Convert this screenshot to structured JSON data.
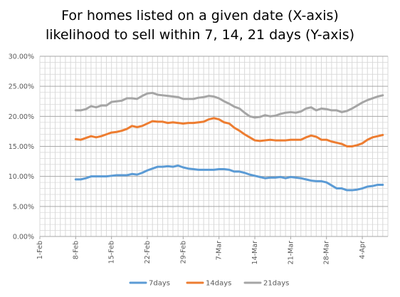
{
  "chart_data": {
    "type": "line",
    "title_lines": [
      "For homes listed on a given date (X-axis)",
      "likelihood to sell within 7, 14, 21 days  (Y-axis)"
    ],
    "xlabel": "",
    "ylabel": "",
    "ylim": [
      0,
      0.3
    ],
    "y_ticks": [
      "0.00%",
      "5.00%",
      "10.00%",
      "15.00%",
      "20.00%",
      "25.00%",
      "30.00%"
    ],
    "x_ticks": [
      "1-Feb",
      "8-Feb",
      "15-Feb",
      "22-Feb",
      "29-Feb",
      "7-Mar",
      "14-Mar",
      "21-Mar",
      "28-Mar",
      "4-Apr"
    ],
    "x_start_label": "1-Feb",
    "x_range_days": [
      0,
      68
    ],
    "grid": "horizontal and vertical",
    "legend_position": "bottom",
    "series": [
      {
        "name": "7days",
        "color": "#5b9bd5",
        "x": [
          7,
          8,
          9,
          10,
          11,
          12,
          13,
          14,
          15,
          16,
          17,
          18,
          19,
          20,
          21,
          22,
          23,
          24,
          25,
          26,
          27,
          28,
          29,
          30,
          31,
          32,
          33,
          34,
          35,
          36,
          37,
          38,
          39,
          40,
          41,
          42,
          43,
          44,
          45,
          46,
          47,
          48,
          49,
          50,
          51,
          52,
          53,
          54,
          55,
          56,
          57,
          58,
          59,
          60,
          61,
          62,
          63,
          64,
          65,
          66,
          67
        ],
        "values": [
          0.095,
          0.095,
          0.097,
          0.1,
          0.1,
          0.1,
          0.1,
          0.101,
          0.102,
          0.102,
          0.102,
          0.104,
          0.103,
          0.106,
          0.11,
          0.113,
          0.116,
          0.116,
          0.117,
          0.116,
          0.118,
          0.115,
          0.113,
          0.112,
          0.111,
          0.111,
          0.111,
          0.111,
          0.112,
          0.112,
          0.111,
          0.108,
          0.108,
          0.106,
          0.103,
          0.101,
          0.099,
          0.097,
          0.098,
          0.098,
          0.099,
          0.097,
          0.099,
          0.098,
          0.097,
          0.095,
          0.093,
          0.092,
          0.092,
          0.09,
          0.085,
          0.08,
          0.08,
          0.077,
          0.077,
          0.078,
          0.08,
          0.083,
          0.084,
          0.086,
          0.086
        ]
      },
      {
        "name": "14days",
        "color": "#ed7d31",
        "x": [
          7,
          8,
          9,
          10,
          11,
          12,
          13,
          14,
          15,
          16,
          17,
          18,
          19,
          20,
          21,
          22,
          23,
          24,
          25,
          26,
          27,
          28,
          29,
          30,
          31,
          32,
          33,
          34,
          35,
          36,
          37,
          38,
          39,
          40,
          41,
          42,
          43,
          44,
          45,
          46,
          47,
          48,
          49,
          50,
          51,
          52,
          53,
          54,
          55,
          56,
          57,
          58,
          59,
          60,
          61,
          62,
          63,
          64,
          65,
          66,
          67
        ],
        "values": [
          0.162,
          0.161,
          0.164,
          0.167,
          0.165,
          0.167,
          0.17,
          0.173,
          0.174,
          0.176,
          0.179,
          0.184,
          0.182,
          0.184,
          0.188,
          0.192,
          0.191,
          0.191,
          0.189,
          0.19,
          0.189,
          0.188,
          0.189,
          0.189,
          0.19,
          0.191,
          0.195,
          0.197,
          0.195,
          0.19,
          0.188,
          0.181,
          0.176,
          0.17,
          0.165,
          0.16,
          0.159,
          0.16,
          0.161,
          0.16,
          0.16,
          0.16,
          0.161,
          0.161,
          0.161,
          0.165,
          0.168,
          0.166,
          0.161,
          0.161,
          0.158,
          0.156,
          0.154,
          0.15,
          0.15,
          0.152,
          0.155,
          0.161,
          0.165,
          0.167,
          0.169
        ]
      },
      {
        "name": "21days",
        "color": "#a5a5a5",
        "x": [
          7,
          8,
          9,
          10,
          11,
          12,
          13,
          14,
          15,
          16,
          17,
          18,
          19,
          20,
          21,
          22,
          23,
          24,
          25,
          26,
          27,
          28,
          29,
          30,
          31,
          32,
          33,
          34,
          35,
          36,
          37,
          38,
          39,
          40,
          41,
          42,
          43,
          44,
          45,
          46,
          47,
          48,
          49,
          50,
          51,
          52,
          53,
          54,
          55,
          56,
          57,
          58,
          59,
          60,
          61,
          62,
          63,
          64,
          65,
          66,
          67
        ],
        "values": [
          0.21,
          0.21,
          0.212,
          0.217,
          0.215,
          0.218,
          0.218,
          0.224,
          0.225,
          0.226,
          0.23,
          0.23,
          0.229,
          0.234,
          0.238,
          0.239,
          0.236,
          0.235,
          0.234,
          0.233,
          0.232,
          0.229,
          0.229,
          0.229,
          0.231,
          0.232,
          0.234,
          0.233,
          0.23,
          0.225,
          0.221,
          0.216,
          0.213,
          0.206,
          0.2,
          0.198,
          0.199,
          0.202,
          0.2,
          0.201,
          0.204,
          0.206,
          0.207,
          0.206,
          0.208,
          0.213,
          0.215,
          0.21,
          0.213,
          0.212,
          0.21,
          0.21,
          0.207,
          0.209,
          0.213,
          0.218,
          0.223,
          0.227,
          0.23,
          0.233,
          0.235
        ]
      }
    ]
  }
}
